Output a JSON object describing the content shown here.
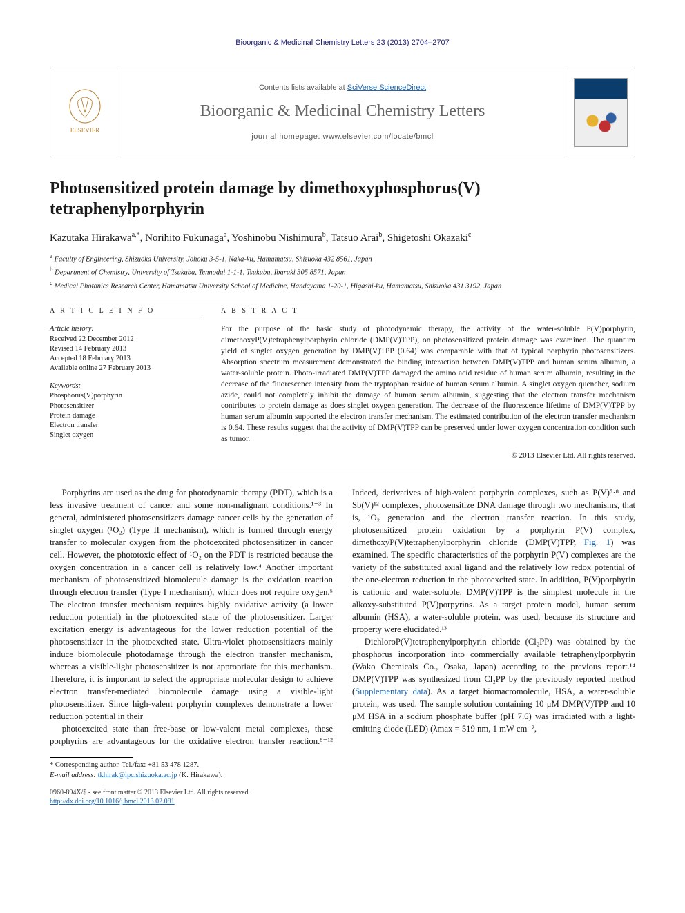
{
  "runningHeader": "Bioorganic & Medicinal Chemistry Letters 23 (2013) 2704–2707",
  "masthead": {
    "contentsPrefix": "Contents lists available at ",
    "contentsLink": "SciVerse ScienceDirect",
    "journalName": "Bioorganic & Medicinal Chemistry Letters",
    "homepagePrefix": "journal homepage: ",
    "homepageUrl": "www.elsevier.com/locate/bmcl"
  },
  "title": "Photosensitized protein damage by dimethoxyphosphorus(V) tetraphenylporphyrin",
  "authors": [
    {
      "name": "Kazutaka Hirakawa",
      "marks": "a,*"
    },
    {
      "name": "Norihito Fukunaga",
      "marks": "a"
    },
    {
      "name": "Yoshinobu Nishimura",
      "marks": "b"
    },
    {
      "name": "Tatsuo Arai",
      "marks": "b"
    },
    {
      "name": "Shigetoshi Okazaki",
      "marks": "c"
    }
  ],
  "affiliations": [
    {
      "mark": "a",
      "text": "Faculty of Engineering, Shizuoka University, Johoku 3-5-1, Naka-ku, Hamamatsu, Shizuoka 432 8561, Japan"
    },
    {
      "mark": "b",
      "text": "Department of Chemistry, University of Tsukuba, Tennodai 1-1-1, Tsukuba, Ibaraki 305 8571, Japan"
    },
    {
      "mark": "c",
      "text": "Medical Photonics Research Center, Hamamatsu University School of Medicine, Handayama 1-20-1, Higashi-ku, Hamamatsu, Shizuoka 431 3192, Japan"
    }
  ],
  "articleInfo": {
    "heading": "A R T I C L E   I N F O",
    "historyLabel": "Article history:",
    "history": [
      "Received 22 December 2012",
      "Revised 14 February 2013",
      "Accepted 18 February 2013",
      "Available online 27 February 2013"
    ],
    "keywordsLabel": "Keywords:",
    "keywords": [
      "Phosphorus(V)porphyrin",
      "Photosensitizer",
      "Protein damage",
      "Electron transfer",
      "Singlet oxygen"
    ]
  },
  "abstract": {
    "heading": "A B S T R A C T",
    "text": "For the purpose of the basic study of photodynamic therapy, the activity of the water-soluble P(V)porphyrin, dimethoxyP(V)tetraphenylporphyrin chloride (DMP(V)TPP), on photosensitized protein damage was examined. The quantum yield of singlet oxygen generation by DMP(V)TPP (0.64) was comparable with that of typical porphyrin photosensitizers. Absorption spectrum measurement demonstrated the binding interaction between DMP(V)TPP and human serum albumin, a water-soluble protein. Photo-irradiated DMP(V)TPP damaged the amino acid residue of human serum albumin, resulting in the decrease of the fluorescence intensity from the tryptophan residue of human serum albumin. A singlet oxygen quencher, sodium azide, could not completely inhibit the damage of human serum albumin, suggesting that the electron transfer mechanism contributes to protein damage as does singlet oxygen generation. The decrease of the fluorescence lifetime of DMP(V)TPP by human serum albumin supported the electron transfer mechanism. The estimated contribution of the electron transfer mechanism is 0.64. These results suggest that the activity of DMP(V)TPP can be preserved under lower oxygen concentration condition such as tumor.",
    "copyright": "© 2013 Elsevier Ltd. All rights reserved."
  },
  "body": {
    "para1": "Porphyrins are used as the drug for photodynamic therapy (PDT), which is a less invasive treatment of cancer and some non-malignant conditions.¹⁻³ In general, administered photosensitizers damage cancer cells by the generation of singlet oxygen (¹O₂) (Type II mechanism), which is formed through energy transfer to molecular oxygen from the photoexcited photosensitizer in cancer cell. However, the phototoxic effect of ¹O₂ on the PDT is restricted because the oxygen concentration in a cancer cell is relatively low.⁴ Another important mechanism of photosensitized biomolecule damage is the oxidation reaction through electron transfer (Type I mechanism), which does not require oxygen.⁵ The electron transfer mechanism requires highly oxidative activity (a lower reduction potential) in the photoexcited state of the photosensitizer. Larger excitation energy is advantageous for the lower reduction potential of the photosensitizer in the photoexcited state. Ultra-violet photosensitizers mainly induce biomolecule photodamage through the electron transfer mechanism, whereas a visible-light photosensitizer is not appropriate for this mechanism. Therefore, it is important to select the appropriate molecular design to achieve electron transfer-mediated biomolecule damage using a visible-light photosensitizer. Since high-valent porphyrin complexes demonstrate a lower reduction potential in their",
    "para2_pre": "photoexcited state than free-base or low-valent metal complexes, these porphyrins are advantageous for the oxidative electron transfer reaction.⁵⁻¹² Indeed, derivatives of high-valent porphyrin complexes, such as P(V)⁵·⁸ and Sb(V)¹² complexes, photosensitize DNA damage through two mechanisms, that is, ¹O₂ generation and the electron transfer reaction. In this study, photosensitized protein oxidation by a porphyrin P(V) complex, dimethoxyP(V)tetraphenylporphyrin chloride (DMP(V)TPP, ",
    "para2_link": "Fig. 1",
    "para2_post": ") was examined. The specific characteristics of the porphyrin P(V) complexes are the variety of the substituted axial ligand and the relatively low redox potential of the one-electron reduction in the photoexcited state. In addition, P(V)porphyrin is cationic and water-soluble. DMP(V)TPP is the simplest molecule in the alkoxy-substituted P(V)porpyrins. As a target protein model, human serum albumin (HSA), a water-soluble protein, was used, because its structure and property were elucidated.¹³",
    "para3_pre": "DichloroP(V)tetraphenylporphyrin chloride (Cl₂PP) was obtained by the phosphorus incorporation into commercially available tetraphenylporphyrin (Wako Chemicals Co., Osaka, Japan) according to the previous report.¹⁴ DMP(V)TPP was synthesized from Cl₂PP by the previously reported method (",
    "para3_link": "Supplementary data",
    "para3_post": "). As a target biomacromolecule, HSA, a water-soluble protein, was used. The sample solution containing 10 μM DMP(V)TPP and 10 μM HSA in a sodium phosphate buffer (pH 7.6) was irradiated with a light-emitting diode (LED) (λmax = 519 nm, 1 mW cm⁻²,"
  },
  "footnotes": {
    "corresponding": "* Corresponding author. Tel./fax: +81 53 478 1287.",
    "emailLabel": "E-mail address:",
    "email": "tkhirak@ipc.shizuoka.ac.jp",
    "emailSuffix": " (K. Hirakawa)."
  },
  "footer": {
    "line1": "0960-894X/$ - see front matter © 2013 Elsevier Ltd. All rights reserved.",
    "doiUrl": "http://dx.doi.org/10.1016/j.bmcl.2013.02.081"
  },
  "colors": {
    "link": "#1a66b3",
    "headerBlue": "#1a1a7a"
  }
}
